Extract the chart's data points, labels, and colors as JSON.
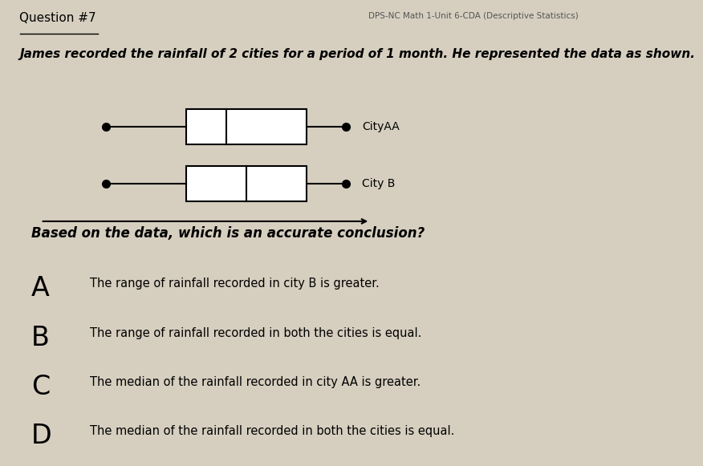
{
  "title": "Question #7",
  "subtitle": "DPS-NC Math 1-Unit 6-CDA (Descriptive Statistics)",
  "question_text": "James recorded the rainfall of 2 cities for a period of 1 month. He represented the data as shown.",
  "conclusion_question": "Based on the data, which is an accurate conclusion?",
  "answers": [
    {
      "letter": "A",
      "text": "The range of rainfall recorded in city B is greater."
    },
    {
      "letter": "B",
      "text": "The range of rainfall recorded in both the cities is equal."
    },
    {
      "letter": "C",
      "text": "The median of the rainfall recorded in city AA is greater."
    },
    {
      "letter": "D",
      "text": "The median of the rainfall recorded in both the cities is equal."
    }
  ],
  "cityAA": {
    "min": 1,
    "q1": 3,
    "median": 4,
    "q3": 6,
    "max": 7,
    "label": "CityAA"
  },
  "cityB": {
    "min": 1,
    "q1": 3,
    "median": 4.5,
    "q3": 6,
    "max": 7,
    "label": "City B"
  },
  "axis_min": 0,
  "axis_max": 8,
  "bg_color": "#d6cfc0",
  "box_color": "#ffffff",
  "box_edge_color": "#000000",
  "text_color": "#000000",
  "line_color": "#000000"
}
